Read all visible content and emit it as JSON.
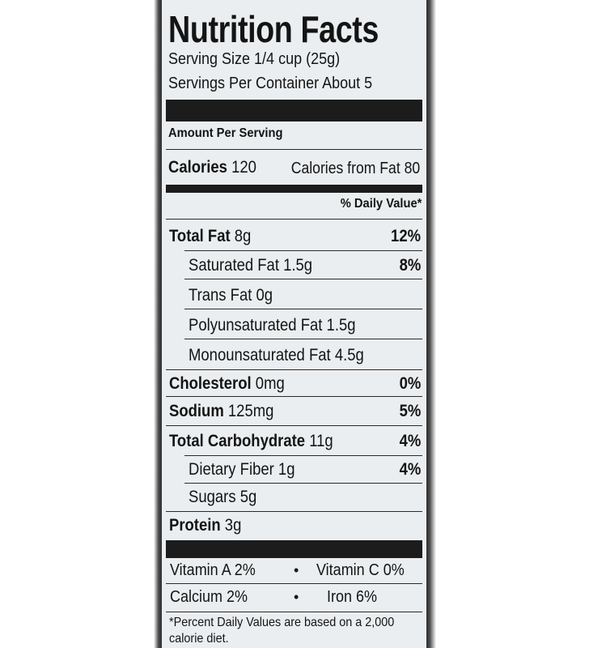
{
  "label": {
    "title": "Nutrition Facts",
    "serving_size": "Serving Size 1/4 cup (25g)",
    "servings_per_container": "Servings Per Container About 5",
    "amount_per_serving": "Amount Per Serving",
    "calories_label": "Calories",
    "calories_value": "120",
    "calories_from_fat": "Calories from Fat 80",
    "daily_value_header": "% Daily Value*",
    "nutrients": [
      {
        "name": "Total Fat",
        "amount": "8g",
        "dv": "12%"
      },
      {
        "name": "Saturated Fat",
        "amount": "1.5g",
        "dv": "8%"
      },
      {
        "name": "Trans Fat",
        "amount": "0g",
        "dv": ""
      },
      {
        "name": "Polyunsaturated Fat",
        "amount": "1.5g",
        "dv": ""
      },
      {
        "name": "Monounsaturated Fat",
        "amount": "4.5g",
        "dv": ""
      },
      {
        "name": "Cholesterol",
        "amount": "0mg",
        "dv": "0%"
      },
      {
        "name": "Sodium",
        "amount": "125mg",
        "dv": "5%"
      },
      {
        "name": "Total Carbohydrate",
        "amount": "11g",
        "dv": "4%"
      },
      {
        "name": "Dietary Fiber",
        "amount": "1g",
        "dv": "4%"
      },
      {
        "name": "Sugars",
        "amount": "5g",
        "dv": ""
      },
      {
        "name": "Protein",
        "amount": "3g",
        "dv": ""
      }
    ],
    "vitamins": [
      {
        "left": "Vitamin A 2%",
        "bullet": "•",
        "right": "Vitamin C 0%"
      },
      {
        "left": "Calcium 2%",
        "bullet": "•",
        "right": "Iron 6%"
      }
    ],
    "footnote_line1": "*Percent Daily Values are based on a 2,000",
    "footnote_line2": "calorie diet."
  }
}
